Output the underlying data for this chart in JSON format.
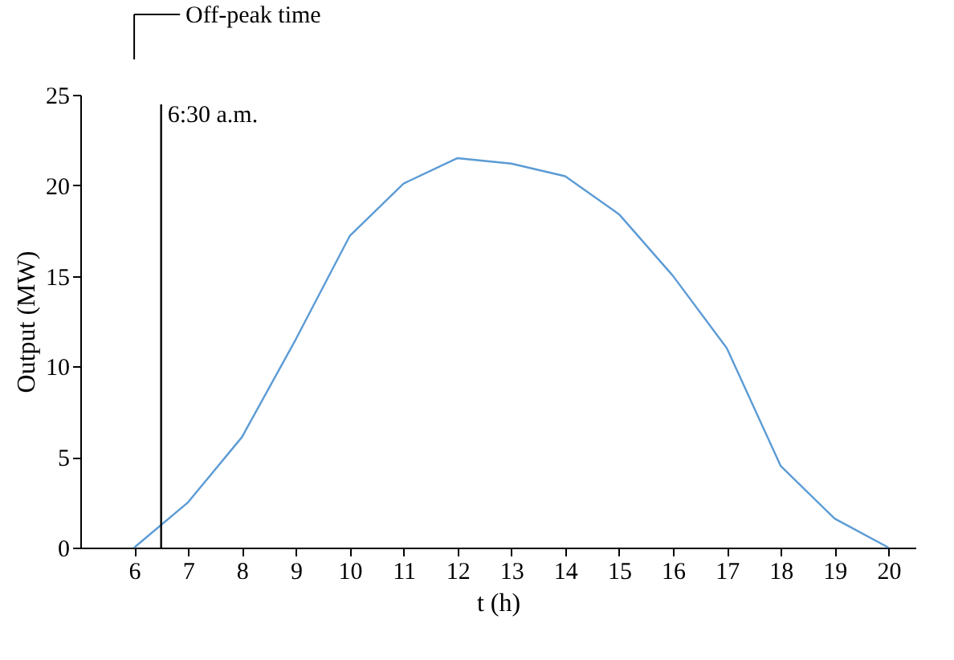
{
  "chart_data": {
    "type": "line",
    "xlabel": "t (h)",
    "ylabel": "Output (MW)",
    "x": [
      6,
      7,
      8,
      9,
      10,
      11,
      12,
      13,
      14,
      15,
      16,
      17,
      18,
      19,
      20
    ],
    "series": [
      {
        "color": "#5b9bd5",
        "values": [
          0,
          2.5,
          6.1,
          11.5,
          17.2,
          20.1,
          21.5,
          21.2,
          20.5,
          18.4,
          15,
          11,
          4.5,
          1.6,
          0
        ]
      }
    ],
    "xlim": [
      5,
      20.5
    ],
    "xticks": [
      6,
      7,
      8,
      9,
      10,
      11,
      12,
      13,
      14,
      15,
      16,
      17,
      18,
      19,
      20
    ],
    "ylim": [
      0,
      25
    ],
    "yticks": [
      0,
      5,
      10,
      15,
      20,
      25
    ],
    "marker": "none",
    "line_style": "solid",
    "ref_lines": [
      {
        "axis": "x",
        "value": 6.5,
        "label": "6:30 a.m.",
        "color": "#000000"
      }
    ],
    "annotations": [
      "Off-peak time"
    ]
  }
}
